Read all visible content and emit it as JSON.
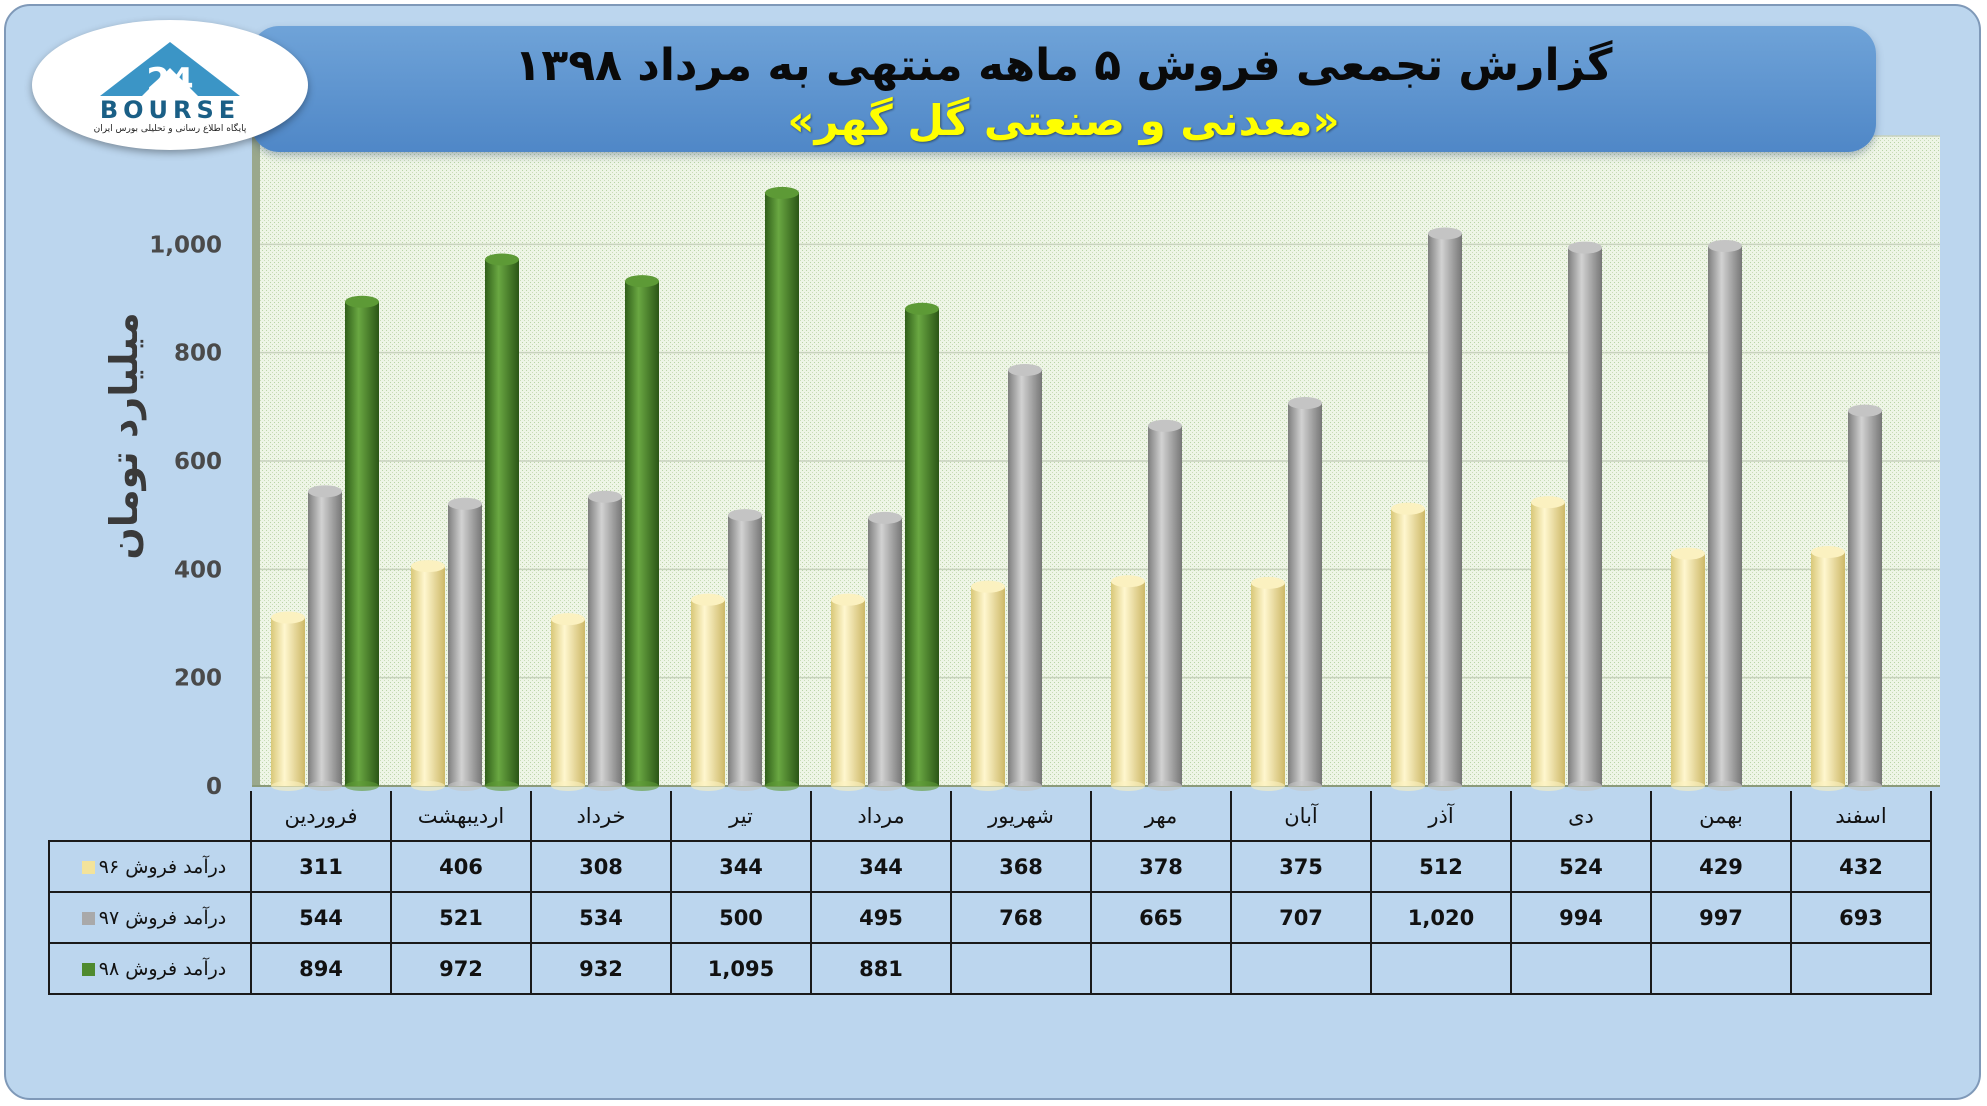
{
  "header": {
    "title": "گزارش تجمعی فروش ۵ ماهه منتهی به مرداد ۱۳۹۸",
    "subtitle": "«معدنی و صنعتی گل گهر»"
  },
  "logo": {
    "word": "BOURSE",
    "tagline": "پایگاه اطلاع رسانی و تحلیلی بورس ایران"
  },
  "colors": {
    "series_96": "#f3e39a",
    "series_97": "#a9a9a9",
    "series_98": "#4f8a2e"
  },
  "chart_data": {
    "type": "bar",
    "title": "گزارش تجمعی فروش ۵ ماهه منتهی به مرداد ۱۳۹۸",
    "subtitle": "«معدنی و صنعتی گل گهر»",
    "ylabel": "میلیارد تومان",
    "ylim": [
      0,
      1200
    ],
    "yticks": [
      "0",
      "200",
      "400",
      "600",
      "800",
      "1,000",
      "1,200"
    ],
    "grid": true,
    "categories": [
      "فروردین",
      "اردیبهشت",
      "خرداد",
      "تیر",
      "مرداد",
      "شهریور",
      "مهر",
      "آبان",
      "آذر",
      "دی",
      "بهمن",
      "اسفند"
    ],
    "series": [
      {
        "name": "درآمد فروش ۹۶",
        "values": [
          311,
          406,
          308,
          344,
          344,
          368,
          378,
          375,
          512,
          524,
          429,
          432
        ],
        "labels": [
          "311",
          "406",
          "308",
          "344",
          "344",
          "368",
          "378",
          "375",
          "512",
          "524",
          "429",
          "432"
        ]
      },
      {
        "name": "درآمد فروش ۹۷",
        "values": [
          544,
          521,
          534,
          500,
          495,
          768,
          665,
          707,
          1020,
          994,
          997,
          693
        ],
        "labels": [
          "544",
          "521",
          "534",
          "500",
          "495",
          "768",
          "665",
          "707",
          "1,020",
          "994",
          "997",
          "693"
        ]
      },
      {
        "name": "درآمد فروش ۹۸",
        "values": [
          894,
          972,
          932,
          1095,
          881,
          null,
          null,
          null,
          null,
          null,
          null,
          null
        ],
        "labels": [
          "894",
          "972",
          "932",
          "1,095",
          "881",
          "",
          "",
          "",
          "",
          "",
          "",
          ""
        ]
      }
    ]
  }
}
